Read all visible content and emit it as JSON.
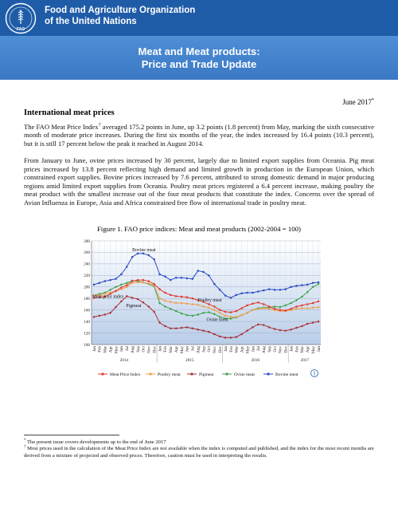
{
  "header": {
    "org_line1": "Food and Agriculture Organization",
    "org_line2": "of the United Nations",
    "logo_icon": "fao-logo-icon",
    "bar_color": "#1f5ca8"
  },
  "banner": {
    "title_line1": "Meat and Meat products:",
    "title_line2": "Price and Trade Update",
    "color": "#3a78c4"
  },
  "date": "June 2017",
  "date_marker": "*",
  "section_title": "International meat prices",
  "paragraph1": {
    "before": "The FAO Meat Price Index",
    "marker": "†",
    "after": " averaged 175.2 points in June, up 3.2 points (1.8 percent) from May, marking the sixth consecutive month of moderate price increases. During the first six months of the year, the index increased by 16.4 points (10.3 percent), but it is still 17 percent below the peak it reached in August 2014."
  },
  "paragraph2": "From January to June, ovine prices increased by 30 percent, largely due to limited export supplies from Oceania. Pig meat prices increased by 13.8 percent reflecting high demand and limited growth in production in the European Union, which constrained export supplies. Bovine prices increased by 7.6 percent, attributed to strong domestic demand in major producing regions amid limited export supplies from Oceania. Poultry meat prices registered a 6.4 percent increase, making poultry the meat product with the smallest increase out of the four meat products that constitute the index. Concerns over the spread of Avian Influenza in Europe, Asia and Africa constrained free flow of international trade in poultry meat.",
  "figure_caption": "Figure 1. FAO price indices: Meat and meat products (2002-2004 = 100)",
  "chart_data": {
    "type": "line",
    "ylim": [
      100,
      280
    ],
    "yticks": [
      100,
      120,
      140,
      160,
      180,
      200,
      220,
      240,
      260,
      280
    ],
    "x": [
      "Jan",
      "Feb",
      "Mar",
      "Apr",
      "May",
      "Jun",
      "Jul",
      "Aug",
      "Sep",
      "Oct",
      "Nov",
      "Dec",
      "Jan",
      "Feb",
      "Mar",
      "Apr",
      "May",
      "Jun",
      "Jul",
      "Aug",
      "Sep",
      "Oct",
      "Nov",
      "Dec",
      "Jan",
      "Feb",
      "Mar",
      "Apr",
      "May",
      "Jun",
      "Jul",
      "Aug",
      "Sep",
      "Oct",
      "Nov",
      "Dec",
      "Jan",
      "Feb",
      "Mar",
      "Apr",
      "May",
      "Jun"
    ],
    "years": [
      {
        "label": "2014",
        "start": 0,
        "end": 11
      },
      {
        "label": "2015",
        "start": 12,
        "end": 23
      },
      {
        "label": "2016",
        "start": 24,
        "end": 35
      },
      {
        "label": "2017",
        "start": 36,
        "end": 41
      }
    ],
    "grid": true,
    "legend_position": "bottom",
    "series": [
      {
        "name": "Meat Price Index",
        "color": "#e3372b",
        "values": [
          181,
          182,
          183,
          188,
          193,
          199,
          203,
          210,
          212,
          212,
          210,
          205,
          196,
          190,
          186,
          184,
          183,
          182,
          180,
          177,
          174,
          170,
          166,
          160,
          157,
          156,
          158,
          163,
          168,
          171,
          173,
          170,
          166,
          162,
          160,
          159,
          162,
          166,
          168,
          170,
          172,
          175
        ]
      },
      {
        "name": "Poultry meat",
        "color": "#f0a047",
        "values": [
          185,
          186,
          188,
          190,
          193,
          196,
          200,
          207,
          208,
          208,
          206,
          203,
          180,
          176,
          174,
          172,
          172,
          171,
          170,
          169,
          166,
          164,
          160,
          155,
          150,
          148,
          148,
          151,
          155,
          160,
          162,
          163,
          162,
          160,
          158,
          158,
          160,
          162,
          163,
          163,
          164,
          165
        ]
      },
      {
        "name": "Pigmeat",
        "color": "#a8323a",
        "values": [
          148,
          150,
          152,
          155,
          165,
          175,
          184,
          181,
          179,
          173,
          166,
          157,
          138,
          132,
          128,
          128,
          129,
          130,
          128,
          126,
          124,
          122,
          118,
          114,
          112,
          112,
          113,
          118,
          124,
          130,
          135,
          134,
          130,
          127,
          125,
          124,
          126,
          129,
          132,
          136,
          138,
          140
        ]
      },
      {
        "name": "Ovine meat",
        "color": "#3ea34a",
        "values": [
          185,
          188,
          190,
          195,
          200,
          204,
          207,
          211,
          210,
          208,
          205,
          201,
          172,
          166,
          162,
          158,
          154,
          151,
          150,
          152,
          155,
          156,
          153,
          148,
          145,
          145,
          147,
          151,
          155,
          160,
          163,
          164,
          164,
          166,
          165,
          168,
          172,
          177,
          183,
          191,
          200,
          205
        ]
      },
      {
        "name": "Bovine meat",
        "color": "#2a4bc4",
        "values": [
          204,
          207,
          210,
          212,
          214,
          222,
          235,
          252,
          258,
          258,
          255,
          248,
          222,
          218,
          212,
          216,
          216,
          215,
          214,
          228,
          226,
          220,
          205,
          195,
          185,
          181,
          186,
          189,
          190,
          190,
          192,
          194,
          196,
          195,
          195,
          196,
          200,
          202,
          203,
          204,
          207,
          208
        ]
      }
    ],
    "annotations": [
      {
        "text": "Bovine meat",
        "series": 4
      },
      {
        "text": "Poultry meat",
        "series": 1
      },
      {
        "text": "Meat price index",
        "series": 0
      },
      {
        "text": "Pigmeat",
        "series": 2
      },
      {
        "text": "Ovine meat",
        "series": 3
      }
    ]
  },
  "footnotes": [
    {
      "marker": "*",
      "text": " The present issue covers developments up to the end of June 2017"
    },
    {
      "marker": "†",
      "text": " Most prices used in the calculation of the Meat Price Index are not available when the index is computed and published, and the index for the most recent months are derived from a mixture of projected and observed prices. Therefore, caution must be used in interpreting the results."
    }
  ]
}
